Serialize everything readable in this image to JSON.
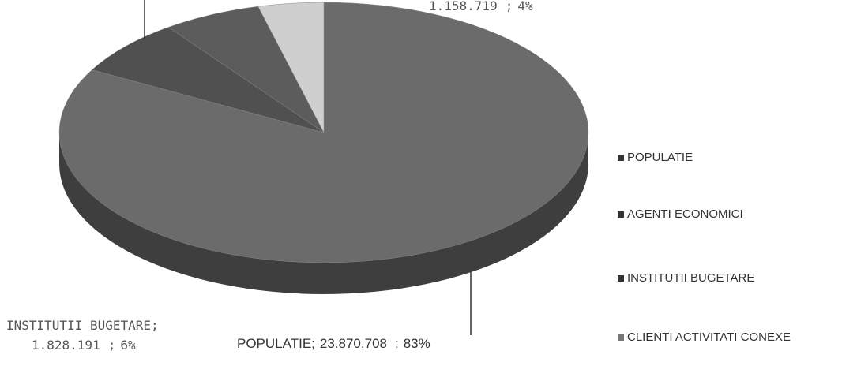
{
  "chart_data": {
    "type": "pie",
    "categories": [
      "POPULATIE",
      "AGENTI ECONOMICI",
      "INSTITUTII BUGETARE",
      "CLIENTI ACTIVITATI CONEXE"
    ],
    "values": [
      83,
      7,
      6,
      4
    ],
    "value_labels": [
      "83%",
      null,
      "6%",
      "4%"
    ],
    "amounts": [
      23870708,
      null,
      1828191,
      1158719
    ],
    "amount_labels": [
      "23.870.708",
      null,
      "1.828.191",
      "1.158.719"
    ],
    "label_names": [
      "POPULATIE;",
      null,
      "INSTITUTII BUGETARE;",
      null
    ],
    "separator": ";",
    "colors": [
      "#6b6b6b",
      "#505050",
      "#5c5c5c",
      "#cfcfcf"
    ],
    "legend": "right"
  }
}
